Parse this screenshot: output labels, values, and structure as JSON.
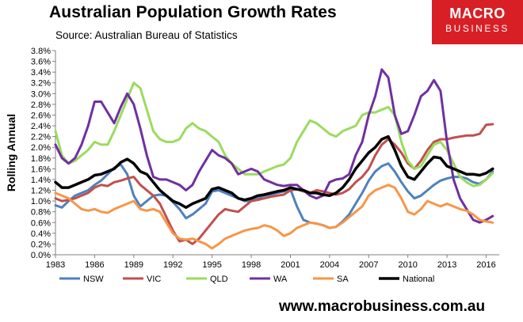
{
  "header": {
    "title": "Australian Population Growth Rates",
    "subtitle": "Source: Australian Bureau of Statistics"
  },
  "logo": {
    "line1": "MACRO",
    "line2": "BUSINESS"
  },
  "footer": {
    "website": "www.macrobusiness.com.au"
  },
  "chart_data": {
    "type": "line",
    "title": "Australian Population Growth Rates",
    "xlabel": "",
    "ylabel": "Rolling Annual",
    "xlim": [
      1983,
      2017
    ],
    "ylim": [
      0,
      3.8
    ],
    "yticks": [
      0.0,
      0.2,
      0.4,
      0.6,
      0.8,
      1.0,
      1.2,
      1.4,
      1.6,
      1.8,
      2.0,
      2.2,
      2.4,
      2.6,
      2.8,
      3.0,
      3.2,
      3.4,
      3.6,
      3.8
    ],
    "ytick_labels": [
      "0.0%",
      "0.2%",
      "0.4%",
      "0.6%",
      "0.8%",
      "1.0%",
      "1.2%",
      "1.4%",
      "1.6%",
      "1.8%",
      "2.0%",
      "2.2%",
      "2.4%",
      "2.6%",
      "2.8%",
      "3.0%",
      "3.2%",
      "3.4%",
      "3.6%",
      "3.8%"
    ],
    "xticks": [
      1983,
      1986,
      1989,
      1992,
      1995,
      1998,
      2001,
      2004,
      2007,
      2010,
      2013,
      2016
    ],
    "xtick_labels": [
      "1983",
      "1986",
      "1989",
      "1992",
      "1995",
      "1998",
      "2001",
      "2004",
      "2007",
      "2010",
      "2013",
      "2016"
    ],
    "grid": false,
    "legend_position": "bottom-left",
    "series": [
      {
        "name": "NSW",
        "color": "#4f81bd",
        "x": [
          1983.0,
          1983.5,
          1984.0,
          1984.5,
          1985.0,
          1985.5,
          1986.0,
          1986.5,
          1987.0,
          1987.5,
          1988.0,
          1988.5,
          1989.0,
          1989.5,
          1990.0,
          1990.5,
          1991.0,
          1991.5,
          1992.0,
          1992.5,
          1993.0,
          1993.5,
          1994.0,
          1994.5,
          1995.0,
          1995.5,
          1996.0,
          1996.5,
          1997.0,
          1997.5,
          1998.0,
          1998.5,
          1999.0,
          1999.5,
          2000.0,
          2000.5,
          2001.0,
          2001.5,
          2002.0,
          2002.5,
          2003.0,
          2003.5,
          2004.0,
          2004.5,
          2005.0,
          2005.5,
          2006.0,
          2006.5,
          2007.0,
          2007.5,
          2008.0,
          2008.5,
          2009.0,
          2009.5,
          2010.0,
          2010.5,
          2011.0,
          2011.5,
          2012.0,
          2012.5,
          2013.0,
          2013.5,
          2014.0,
          2014.5,
          2015.0,
          2015.5,
          2016.0,
          2016.5
        ],
        "y": [
          0.92,
          0.88,
          1.0,
          1.1,
          1.15,
          1.2,
          1.3,
          1.38,
          1.5,
          1.62,
          1.68,
          1.5,
          1.1,
          0.9,
          1.0,
          1.1,
          1.12,
          1.1,
          0.98,
          0.85,
          0.68,
          0.75,
          0.85,
          0.95,
          1.18,
          1.2,
          1.15,
          1.1,
          1.05,
          1.0,
          1.0,
          1.05,
          1.1,
          1.12,
          1.15,
          1.18,
          1.22,
          0.9,
          0.65,
          0.6,
          0.58,
          0.55,
          0.5,
          0.52,
          0.62,
          0.75,
          0.95,
          1.15,
          1.38,
          1.55,
          1.65,
          1.7,
          1.55,
          1.35,
          1.18,
          1.05,
          1.1,
          1.2,
          1.3,
          1.38,
          1.42,
          1.45,
          1.45,
          1.42,
          1.35,
          1.32,
          1.4,
          1.55
        ]
      },
      {
        "name": "VIC",
        "color": "#c0504d",
        "x": [
          1983.0,
          1983.5,
          1984.0,
          1984.5,
          1985.0,
          1985.5,
          1986.0,
          1986.5,
          1987.0,
          1987.5,
          1988.0,
          1988.5,
          1989.0,
          1989.5,
          1990.0,
          1990.5,
          1991.0,
          1991.5,
          1992.0,
          1992.5,
          1993.0,
          1993.5,
          1994.0,
          1994.5,
          1995.0,
          1995.5,
          1996.0,
          1996.5,
          1997.0,
          1997.5,
          1998.0,
          1998.5,
          1999.0,
          1999.5,
          2000.0,
          2000.5,
          2001.0,
          2001.5,
          2002.0,
          2002.5,
          2003.0,
          2003.5,
          2004.0,
          2004.5,
          2005.0,
          2005.5,
          2006.0,
          2006.5,
          2007.0,
          2007.5,
          2008.0,
          2008.5,
          2009.0,
          2009.5,
          2010.0,
          2010.5,
          2011.0,
          2011.5,
          2012.0,
          2012.5,
          2013.0,
          2013.5,
          2014.0,
          2014.5,
          2015.0,
          2015.5,
          2016.0,
          2016.5
        ],
        "y": [
          1.05,
          1.0,
          1.02,
          1.05,
          1.1,
          1.15,
          1.25,
          1.3,
          1.28,
          1.35,
          1.38,
          1.42,
          1.45,
          1.3,
          1.2,
          1.1,
          0.95,
          0.7,
          0.45,
          0.25,
          0.28,
          0.2,
          0.3,
          0.45,
          0.6,
          0.75,
          0.85,
          0.82,
          0.8,
          0.9,
          1.0,
          1.02,
          1.05,
          1.08,
          1.1,
          1.12,
          1.2,
          1.22,
          1.18,
          1.15,
          1.2,
          1.18,
          1.15,
          1.12,
          1.15,
          1.22,
          1.35,
          1.45,
          1.6,
          1.85,
          2.05,
          2.15,
          2.05,
          1.9,
          1.7,
          1.6,
          1.75,
          1.95,
          2.1,
          2.15,
          2.15,
          2.18,
          2.2,
          2.22,
          2.22,
          2.25,
          2.42,
          2.43
        ]
      },
      {
        "name": "QLD",
        "color": "#9bdb5e",
        "x": [
          1983.0,
          1983.5,
          1984.0,
          1984.5,
          1985.0,
          1985.5,
          1986.0,
          1986.5,
          1987.0,
          1987.5,
          1988.0,
          1988.5,
          1989.0,
          1989.5,
          1990.0,
          1990.5,
          1991.0,
          1991.5,
          1992.0,
          1992.5,
          1993.0,
          1993.5,
          1994.0,
          1994.5,
          1995.0,
          1995.5,
          1996.0,
          1996.5,
          1997.0,
          1997.5,
          1998.0,
          1998.5,
          1999.0,
          1999.5,
          2000.0,
          2000.5,
          2001.0,
          2001.5,
          2002.0,
          2002.5,
          2003.0,
          2003.5,
          2004.0,
          2004.5,
          2005.0,
          2005.5,
          2006.0,
          2006.5,
          2007.0,
          2007.5,
          2008.0,
          2008.5,
          2009.0,
          2009.5,
          2010.0,
          2010.5,
          2011.0,
          2011.5,
          2012.0,
          2012.5,
          2013.0,
          2013.5,
          2014.0,
          2014.5,
          2015.0,
          2015.5,
          2016.0,
          2016.5
        ],
        "y": [
          2.3,
          1.85,
          1.7,
          1.75,
          1.85,
          1.95,
          2.1,
          2.05,
          2.05,
          2.3,
          2.6,
          2.9,
          3.2,
          3.1,
          2.7,
          2.3,
          2.15,
          2.1,
          2.1,
          2.15,
          2.35,
          2.45,
          2.35,
          2.3,
          2.2,
          2.1,
          1.85,
          1.7,
          1.6,
          1.5,
          1.5,
          1.5,
          1.55,
          1.6,
          1.65,
          1.68,
          1.8,
          2.1,
          2.3,
          2.5,
          2.45,
          2.35,
          2.25,
          2.2,
          2.3,
          2.35,
          2.4,
          2.6,
          2.65,
          2.65,
          2.7,
          2.75,
          2.6,
          2.1,
          1.75,
          1.6,
          1.65,
          1.85,
          2.05,
          2.1,
          1.95,
          1.7,
          1.45,
          1.35,
          1.28,
          1.3,
          1.4,
          1.52
        ]
      },
      {
        "name": "WA",
        "color": "#7030a0",
        "x": [
          1983.0,
          1983.5,
          1984.0,
          1984.5,
          1985.0,
          1985.5,
          1986.0,
          1986.5,
          1987.0,
          1987.5,
          1988.0,
          1988.5,
          1989.0,
          1989.5,
          1990.0,
          1990.5,
          1991.0,
          1991.5,
          1992.0,
          1992.5,
          1993.0,
          1993.5,
          1994.0,
          1994.5,
          1995.0,
          1995.5,
          1996.0,
          1996.5,
          1997.0,
          1997.5,
          1998.0,
          1998.5,
          1999.0,
          1999.5,
          2000.0,
          2000.5,
          2001.0,
          2001.5,
          2002.0,
          2002.5,
          2003.0,
          2003.5,
          2004.0,
          2004.5,
          2005.0,
          2005.5,
          2006.0,
          2006.5,
          2007.0,
          2007.5,
          2008.0,
          2008.5,
          2009.0,
          2009.5,
          2010.0,
          2010.5,
          2011.0,
          2011.5,
          2012.0,
          2012.5,
          2013.0,
          2013.5,
          2014.0,
          2014.5,
          2015.0,
          2015.5,
          2016.0,
          2016.5
        ],
        "y": [
          2.05,
          1.8,
          1.7,
          1.8,
          2.05,
          2.4,
          2.85,
          2.85,
          2.65,
          2.45,
          2.75,
          3.0,
          2.8,
          2.35,
          1.85,
          1.45,
          1.4,
          1.4,
          1.35,
          1.3,
          1.2,
          1.3,
          1.55,
          1.75,
          1.95,
          1.85,
          1.8,
          1.7,
          1.5,
          1.55,
          1.6,
          1.55,
          1.4,
          1.35,
          1.3,
          1.28,
          1.3,
          1.3,
          1.2,
          1.1,
          1.05,
          1.1,
          1.35,
          1.4,
          1.42,
          1.5,
          1.85,
          2.1,
          2.6,
          2.95,
          3.45,
          3.3,
          2.6,
          2.25,
          2.3,
          2.6,
          2.95,
          3.05,
          3.25,
          3.05,
          2.1,
          1.4,
          1.05,
          0.85,
          0.65,
          0.6,
          0.65,
          0.72
        ]
      },
      {
        "name": "SA",
        "color": "#f79646",
        "x": [
          1983.0,
          1983.5,
          1984.0,
          1984.5,
          1985.0,
          1985.5,
          1986.0,
          1986.5,
          1987.0,
          1987.5,
          1988.0,
          1988.5,
          1989.0,
          1989.5,
          1990.0,
          1990.5,
          1991.0,
          1991.5,
          1992.0,
          1992.5,
          1993.0,
          1993.5,
          1994.0,
          1994.5,
          1995.0,
          1995.5,
          1996.0,
          1996.5,
          1997.0,
          1997.5,
          1998.0,
          1998.5,
          1999.0,
          1999.5,
          2000.0,
          2000.5,
          2001.0,
          2001.5,
          2002.0,
          2002.5,
          2003.0,
          2003.5,
          2004.0,
          2004.5,
          2005.0,
          2005.5,
          2006.0,
          2006.5,
          2007.0,
          2007.5,
          2008.0,
          2008.5,
          2009.0,
          2009.5,
          2010.0,
          2010.5,
          2011.0,
          2011.5,
          2012.0,
          2012.5,
          2013.0,
          2013.5,
          2014.0,
          2014.5,
          2015.0,
          2015.5,
          2016.0,
          2016.5
        ],
        "y": [
          1.15,
          1.1,
          1.05,
          0.95,
          0.85,
          0.82,
          0.85,
          0.8,
          0.78,
          0.85,
          0.9,
          0.95,
          1.0,
          0.85,
          0.82,
          0.85,
          0.8,
          0.6,
          0.4,
          0.3,
          0.28,
          0.3,
          0.25,
          0.2,
          0.12,
          0.2,
          0.3,
          0.35,
          0.4,
          0.45,
          0.48,
          0.5,
          0.55,
          0.52,
          0.45,
          0.35,
          0.4,
          0.5,
          0.55,
          0.6,
          0.58,
          0.55,
          0.5,
          0.52,
          0.6,
          0.7,
          0.8,
          0.9,
          1.1,
          1.2,
          1.25,
          1.3,
          1.25,
          1.05,
          0.8,
          0.75,
          0.85,
          1.0,
          0.95,
          0.9,
          0.95,
          0.9,
          0.85,
          0.82,
          0.75,
          0.65,
          0.62,
          0.6
        ]
      },
      {
        "name": "National",
        "color": "#000000",
        "x": [
          1983.0,
          1983.5,
          1984.0,
          1984.5,
          1985.0,
          1985.5,
          1986.0,
          1986.5,
          1987.0,
          1987.5,
          1988.0,
          1988.5,
          1989.0,
          1989.5,
          1990.0,
          1990.5,
          1991.0,
          1991.5,
          1992.0,
          1992.5,
          1993.0,
          1993.5,
          1994.0,
          1994.5,
          1995.0,
          1995.5,
          1996.0,
          1996.5,
          1997.0,
          1997.5,
          1998.0,
          1998.5,
          1999.0,
          1999.5,
          2000.0,
          2000.5,
          2001.0,
          2001.5,
          2002.0,
          2002.5,
          2003.0,
          2003.5,
          2004.0,
          2004.5,
          2005.0,
          2005.5,
          2006.0,
          2006.5,
          2007.0,
          2007.5,
          2008.0,
          2008.5,
          2009.0,
          2009.5,
          2010.0,
          2010.5,
          2011.0,
          2011.5,
          2012.0,
          2012.5,
          2013.0,
          2013.5,
          2014.0,
          2014.5,
          2015.0,
          2015.5,
          2016.0,
          2016.5
        ],
        "y": [
          1.35,
          1.25,
          1.25,
          1.3,
          1.35,
          1.4,
          1.48,
          1.5,
          1.55,
          1.6,
          1.72,
          1.78,
          1.7,
          1.55,
          1.5,
          1.35,
          1.2,
          1.1,
          1.0,
          0.95,
          0.88,
          0.95,
          1.0,
          1.05,
          1.22,
          1.25,
          1.2,
          1.15,
          1.05,
          1.02,
          1.05,
          1.1,
          1.12,
          1.15,
          1.18,
          1.2,
          1.25,
          1.22,
          1.2,
          1.15,
          1.15,
          1.12,
          1.1,
          1.15,
          1.25,
          1.4,
          1.6,
          1.75,
          1.9,
          2.0,
          2.15,
          2.2,
          1.95,
          1.65,
          1.45,
          1.4,
          1.55,
          1.7,
          1.82,
          1.8,
          1.65,
          1.6,
          1.55,
          1.5,
          1.5,
          1.48,
          1.52,
          1.6
        ]
      }
    ]
  }
}
